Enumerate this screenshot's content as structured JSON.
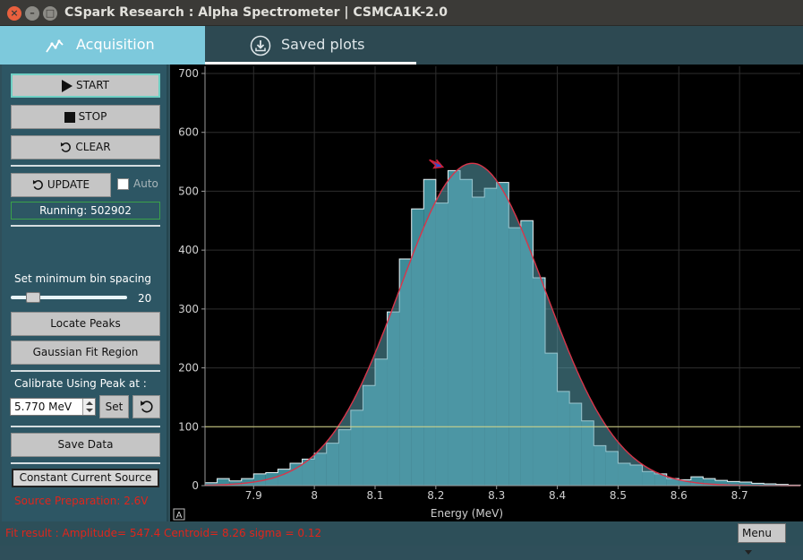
{
  "window": {
    "title": "CSpark Research : Alpha Spectrometer | CSMCA1K-2.0",
    "close_glyph": "×",
    "min_glyph": "–",
    "max_glyph": "□"
  },
  "tabs": [
    {
      "label": "Acquisition",
      "icon": "chart-line-icon",
      "active": true
    },
    {
      "label": "Saved plots",
      "icon": "download-icon",
      "active": false
    }
  ],
  "sidebar": {
    "start_label": "START",
    "stop_label": "STOP",
    "clear_label": "CLEAR",
    "update_label": "UPDATE",
    "auto_label": "Auto",
    "running_text": "Running: 502902",
    "bin_spacing_label": "Set minimum bin spacing",
    "bin_spacing_value": "20",
    "bin_spacing_fraction": 0.19,
    "locate_peaks_label": "Locate Peaks",
    "gaussian_fit_label": "Gaussian Fit Region",
    "calibrate_label": "Calibrate Using Peak at :",
    "calibrate_value": "5.770 MeV",
    "set_label": "Set",
    "save_data_label": "Save Data",
    "constant_current_label": "Constant Current Source",
    "source_prep_text": "Source Preparation: 2.6V",
    "colors": {
      "accent": "#7dc9dc",
      "panel": "#2d5664",
      "warning": "#e0251b"
    }
  },
  "status": {
    "fit_result": "Fit result : Amplitude= 547.4  Centroid=  8.26  sigma =  0.12",
    "menu_label": "Menu"
  },
  "chart_data": {
    "type": "bar",
    "xlabel": "Energy (MeV)",
    "ylabel": "",
    "xlim": [
      7.82,
      8.8
    ],
    "ylim": [
      0,
      700
    ],
    "xticks": [
      "7.9",
      "8",
      "8.1",
      "8.2",
      "8.3",
      "8.4",
      "8.5",
      "8.6",
      "8.7"
    ],
    "yticks": [
      "0",
      "100",
      "200",
      "300",
      "400",
      "500",
      "600",
      "700"
    ],
    "grid": true,
    "threshold_line": 100,
    "auto_range_label": "A",
    "histogram": {
      "bin_edges": [
        7.82,
        7.84,
        7.86,
        7.88,
        7.9,
        7.92,
        7.94,
        7.96,
        7.98,
        8.0,
        8.02,
        8.04,
        8.06,
        8.08,
        8.1,
        8.12,
        8.14,
        8.16,
        8.18,
        8.2,
        8.22,
        8.24,
        8.26,
        8.28,
        8.3,
        8.32,
        8.34,
        8.36,
        8.38,
        8.4,
        8.42,
        8.44,
        8.46,
        8.48,
        8.5,
        8.52,
        8.54,
        8.56,
        8.58,
        8.6,
        8.62,
        8.64,
        8.66,
        8.68,
        8.7,
        8.72,
        8.74,
        8.76,
        8.78,
        8.8
      ],
      "counts": [
        5,
        12,
        8,
        12,
        20,
        22,
        28,
        38,
        45,
        55,
        72,
        95,
        128,
        170,
        215,
        295,
        385,
        470,
        520,
        480,
        535,
        520,
        490,
        505,
        515,
        438,
        450,
        353,
        225,
        160,
        140,
        110,
        68,
        58,
        38,
        35,
        24,
        20,
        12,
        10,
        15,
        12,
        9,
        7,
        6,
        4,
        3,
        2,
        1
      ],
      "color": "#3d8b98",
      "edge_color": "#e8f2f4"
    },
    "fit": {
      "amplitude": 547.4,
      "centroid": 8.26,
      "sigma": 0.12,
      "color": "#d8354a"
    },
    "peak_marker": {
      "x": 8.21,
      "y": 535,
      "color": "#3050d0"
    }
  }
}
